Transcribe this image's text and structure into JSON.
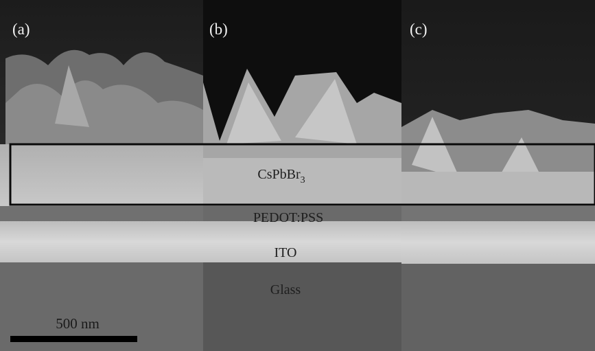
{
  "panels": [
    {
      "label": "(a)"
    },
    {
      "label": "(b)"
    },
    {
      "label": "(c)"
    }
  ],
  "layers": {
    "perovskite": {
      "text": "CsPbBr",
      "subscript": "3"
    },
    "htl": "PEDOT:PSS",
    "electrode": "ITO",
    "substrate": "Glass"
  },
  "scale_bar": {
    "label": "500 nm"
  }
}
